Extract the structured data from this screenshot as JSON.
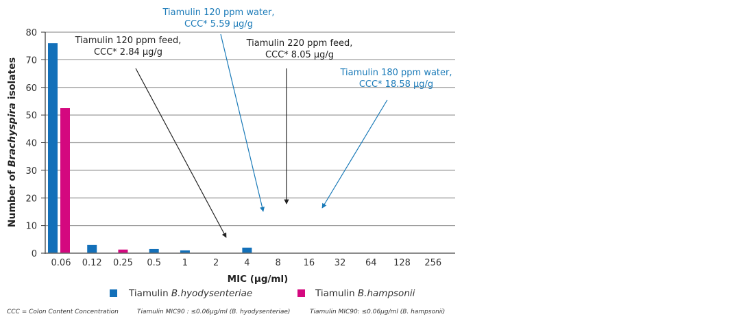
{
  "chart_data": {
    "type": "bar",
    "title": "",
    "xlabel": "MIC (µg/ml)",
    "ylabel_prefix": "Number of ",
    "ylabel_italic": "Brachyspira",
    "ylabel_suffix": " isolates",
    "ylim": [
      0,
      80
    ],
    "yticks": [
      0,
      10,
      20,
      30,
      40,
      50,
      60,
      70,
      80
    ],
    "grid": true,
    "categories": [
      "0.06",
      "0.12",
      "0.25",
      "0.5",
      "1",
      "2",
      "4",
      "8",
      "16",
      "32",
      "64",
      "128",
      "256"
    ],
    "series": [
      {
        "name": "Tiamulin B.hyodysenteriae",
        "name_plain": "Tiamulin ",
        "name_italic": "B.hyodysenteriae",
        "color": "#1370b9",
        "values": [
          76,
          3,
          0,
          1.5,
          1,
          0,
          2,
          0,
          0,
          0,
          0,
          0,
          0
        ]
      },
      {
        "name": "Tiamulin B.hampsonii",
        "name_plain": "Tiamulin ",
        "name_italic": "B.hampsonii",
        "color": "#d4087f",
        "values": [
          52.5,
          0,
          1.3,
          0,
          0,
          0,
          0,
          0,
          0,
          0,
          0,
          0,
          0
        ]
      }
    ],
    "legend_position": "bottom",
    "annotations": [
      {
        "line1": "Tiamulin 120 ppm feed,",
        "line2": "CCC* 2.84 µg/g",
        "color": "#222222",
        "points_to_mic": 2.84
      },
      {
        "line1": "Tiamulin 120 ppm water,",
        "line2": "CCC* 5.59 µg/g",
        "color": "#1a7ab8",
        "points_to_mic": 5.59
      },
      {
        "line1": "Tiamulin 220 ppm feed,",
        "line2": "CCC* 8.05 µg/g",
        "color": "#222222",
        "points_to_mic": 8.05
      },
      {
        "line1": "Tiamulin 180 ppm water,",
        "line2": "CCC* 18.58 µg/g",
        "color": "#1a7ab8",
        "points_to_mic": 18.58
      }
    ]
  },
  "footnotes": [
    "CCC = Colon Content Concentration",
    "Tiamulin MIC90 : ≤0.06µg/ml (B. hyodysenteriae)",
    "Tiamulin MIC90: ≤0.06µg/ml (B. hampsonii)"
  ]
}
